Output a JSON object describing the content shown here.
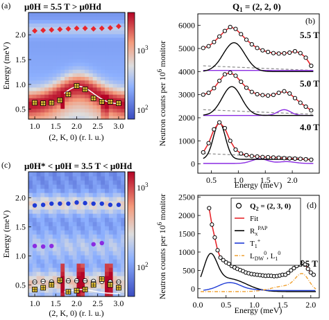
{
  "figure_labels": {
    "a": "(a)",
    "b": "(b)",
    "c": "(c)",
    "d": "(d)"
  },
  "colors": {
    "red": "#e8262c",
    "black": "#000000",
    "blue": "#1f3bd6",
    "purple": "#8a2be2",
    "gray": "#888888",
    "orange": "#f0a030",
    "gold": "#e5c23a",
    "white": "#ffffff"
  },
  "chart_data": [
    {
      "id": "a",
      "type": "heatmap",
      "title": "μ0H = 5.5 T > μ0Hd",
      "xlabel": "(2, K, 0) (r. l. u.)",
      "ylabel": "Energy (meV)",
      "xlim": [
        0.85,
        3.15
      ],
      "ylim": [
        0.3,
        2.45
      ],
      "xticks": [
        "1.0",
        "1.5",
        "2.0",
        "2.5",
        "3.0"
      ],
      "yticks": [
        "0.5",
        "1.0",
        "1.5",
        "2.0"
      ],
      "colorbar": {
        "label": "Neutron counts per 10^6 monitor",
        "ticks": [
          "10^3",
          "10^2"
        ],
        "scale": "log"
      },
      "markers_red": {
        "x": [
          1.0,
          1.2,
          1.4,
          1.6,
          1.8,
          2.0,
          2.2,
          2.4,
          2.6,
          2.8,
          3.0
        ],
        "y": [
          2.08,
          2.09,
          2.1,
          2.11,
          2.12,
          2.13,
          2.13,
          2.12,
          2.13,
          2.14,
          2.17
        ]
      },
      "markers_yellow": {
        "x": [
          1.0,
          1.2,
          1.4,
          1.6,
          1.8,
          2.0,
          2.2,
          2.4,
          2.6,
          2.8,
          3.0
        ],
        "y": [
          0.63,
          0.62,
          0.63,
          0.68,
          0.8,
          0.97,
          0.9,
          0.72,
          0.65,
          0.65,
          0.62
        ]
      }
    },
    {
      "id": "b",
      "type": "line",
      "title": "Q1 = (2, 2, 0)",
      "xlabel": "Energy (meV)",
      "ylabel": "Neutron counts per 10^6 monitor",
      "xlim": [
        0.25,
        2.5
      ],
      "ylim": [
        -400,
        6500
      ],
      "xticks": [
        "0.5",
        "1.0",
        "1.5",
        "2.0"
      ],
      "yticks": [
        "0",
        "1000",
        "2000",
        "3000",
        "4000",
        "5000",
        "6000"
      ],
      "series": [
        {
          "name": "5.5 T",
          "offset": 4000,
          "x": [
            0.35,
            0.45,
            0.55,
            0.65,
            0.75,
            0.85,
            0.95,
            1.05,
            1.15,
            1.25,
            1.35,
            1.45,
            1.55,
            1.65,
            1.75,
            1.85,
            1.95,
            2.05,
            2.15,
            2.25,
            2.35
          ],
          "y": [
            5020,
            5100,
            5280,
            5520,
            5760,
            5930,
            5850,
            5620,
            5380,
            5180,
            5020,
            4920,
            4850,
            4800,
            4780,
            4790,
            4820,
            4880,
            4800,
            4600,
            4250
          ]
        },
        {
          "name": "5.0 T",
          "offset": 2100,
          "x": [
            0.35,
            0.45,
            0.55,
            0.65,
            0.75,
            0.85,
            0.95,
            1.05,
            1.15,
            1.25,
            1.35,
            1.45,
            1.55,
            1.65,
            1.75,
            1.85,
            1.95,
            2.05,
            2.15,
            2.25,
            2.35
          ],
          "y": [
            3000,
            3080,
            3280,
            3600,
            3880,
            3950,
            3820,
            3560,
            3300,
            3120,
            3020,
            2980,
            2960,
            2990,
            3080,
            3150,
            3050,
            2850,
            2650,
            2480,
            2320
          ]
        },
        {
          "name": "4.0 T",
          "offset": 200,
          "x": [
            0.35,
            0.45,
            0.55,
            0.65,
            0.75,
            0.85,
            0.95,
            1.05,
            1.15,
            1.25,
            1.35,
            1.45,
            1.55,
            1.65,
            1.75,
            1.85,
            1.95,
            2.05,
            2.15,
            2.25,
            2.35
          ],
          "y": [
            500,
            900,
            1500,
            1800,
            1550,
            1000,
            620,
            450,
            380,
            340,
            320,
            300,
            290,
            280,
            270,
            250,
            240,
            230,
            220,
            200,
            180
          ]
        }
      ]
    },
    {
      "id": "c",
      "type": "heatmap",
      "title": "μ0H* < μ0H = 3.5 T < μ0Hd",
      "xlabel": "(2, K, 0) (r. l. u.)",
      "ylabel": "Energy (meV)",
      "xlim": [
        0.85,
        3.15
      ],
      "ylim": [
        0.3,
        2.45
      ],
      "xticks": [
        "1.0",
        "1.5",
        "2.0",
        "2.5",
        "3.0"
      ],
      "yticks": [
        "0.5",
        "1.0",
        "1.5",
        "2.0"
      ],
      "colorbar": {
        "label": "Neutron counts per 10^6 monitor",
        "ticks": [
          "10^3",
          "10^2"
        ],
        "scale": "log"
      },
      "markers_blue": {
        "x": [
          1.0,
          1.2,
          1.4,
          1.6,
          1.8,
          2.0,
          2.2,
          2.4,
          2.6,
          2.8,
          3.0
        ],
        "y": [
          1.87,
          1.88,
          1.9,
          1.9,
          1.9,
          1.92,
          1.91,
          1.9,
          1.9,
          1.88,
          1.88
        ]
      },
      "markers_purple": {
        "x": [
          1.0,
          1.2,
          1.4,
          2.4,
          2.6
        ],
        "y": [
          1.17,
          1.16,
          1.17,
          1.2,
          1.22
        ]
      },
      "markers_white": {
        "x": [
          1.0,
          1.2,
          1.4,
          1.6,
          1.8,
          2.0,
          2.2,
          2.4,
          2.6,
          2.8,
          3.0
        ],
        "y": [
          0.55,
          0.56,
          0.55,
          0.56,
          0.57,
          0.57,
          0.57,
          0.56,
          0.56,
          0.55,
          0.55
        ]
      },
      "markers_yellow": {
        "x": [
          1.0,
          1.2,
          1.4,
          1.6,
          1.8,
          2.0,
          2.2,
          2.4,
          2.6,
          2.8,
          3.0
        ],
        "y": [
          0.42,
          0.45,
          0.5,
          0.58,
          0.38,
          0.4,
          0.42,
          0.5,
          0.6,
          0.5,
          0.45
        ]
      }
    },
    {
      "id": "d",
      "type": "line",
      "title": "Q2 = (2, 3, 0)",
      "annotation": "3.5 T",
      "xlabel": "Energy (meV)",
      "ylabel": "Neutron counts per 10^6 monitor",
      "xlim": [
        0.0,
        2.15
      ],
      "ylim": [
        -250,
        2550
      ],
      "xticks": [
        "0.0",
        "0.5",
        "1.0",
        "1.5",
        "2.0"
      ],
      "yticks": [
        "0",
        "500",
        "1000",
        "1500",
        "2000",
        "2500"
      ],
      "legend": {
        "placement": "upper-center",
        "entries": [
          "Q2 = (2, 3, 0)",
          "Fit",
          "RxPAP",
          "T1+",
          "LDW0, L10"
        ]
      },
      "data_points": {
        "x": [
          0.2,
          0.25,
          0.3,
          0.35,
          0.4,
          0.45,
          0.5,
          0.55,
          0.6,
          0.65,
          0.7,
          0.75,
          0.8,
          0.85,
          0.9,
          0.95,
          1.0,
          1.05,
          1.1,
          1.15,
          1.2,
          1.25,
          1.3,
          1.35,
          1.4,
          1.45,
          1.5,
          1.55,
          1.6,
          1.65,
          1.7,
          1.75,
          1.8,
          1.85,
          1.9,
          1.95,
          2.0,
          2.05
        ],
        "y": [
          2200,
          1750,
          1400,
          1050,
          850,
          780,
          720,
          680,
          620,
          580,
          540,
          510,
          480,
          440,
          420,
          400,
          390,
          380,
          370,
          360,
          350,
          355,
          350,
          340,
          345,
          360,
          380,
          380,
          430,
          500,
          560,
          620,
          700,
          720,
          660,
          540,
          440,
          380
        ]
      }
    }
  ]
}
